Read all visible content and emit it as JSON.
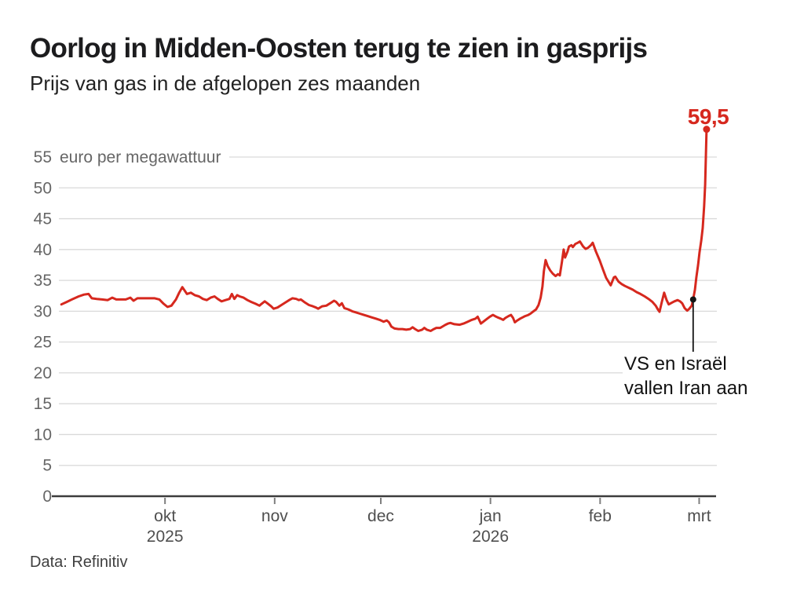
{
  "header": {
    "title": "Oorlog in Midden-Oosten terug te zien in gasprijs",
    "subtitle": "Prijs van gas in de afgelopen zes maanden"
  },
  "footer": {
    "source": "Data: Refinitiv"
  },
  "annotations": {
    "end_label": "59,5",
    "event_line1": "VS en Israël",
    "event_line2": "vallen Iran aan"
  },
  "colors": {
    "line_red": "#d6281e",
    "gridline": "#d9d9d9",
    "axis_line": "#3c3c3c",
    "tick": "#7f7f7f",
    "y_label": "#666666",
    "x_label": "#4f4f4f",
    "annotation_black": "#141414"
  },
  "chart_data": {
    "type": "line",
    "title": "Oorlog in Midden-Oosten terug te zien in gasprijs",
    "subtitle": "Prijs van gas in de afgelopen zes maanden",
    "unit_label": "euro per megawattuur",
    "ylabel": "euro per megawattuur",
    "ylim": [
      0,
      55
    ],
    "y_ticks": [
      0,
      5,
      10,
      15,
      20,
      25,
      30,
      35,
      40,
      45,
      50,
      55
    ],
    "x_epoch": "days since 1 september 2025",
    "x_domain": [
      0,
      186
    ],
    "grid": "horizontal-only",
    "x_ticks": [
      {
        "label": "okt",
        "year": "2025",
        "day": 30
      },
      {
        "label": "nov",
        "day": 61
      },
      {
        "label": "dec",
        "day": 91
      },
      {
        "label": "jan",
        "year": "2026",
        "day": 122
      },
      {
        "label": "feb",
        "day": 153
      },
      {
        "label": "mrt",
        "day": 181
      }
    ],
    "series": [
      {
        "name": "gasprijs",
        "color": "#d6281e",
        "points": [
          [
            0.7,
            31.1
          ],
          [
            2.2,
            31.5
          ],
          [
            4,
            32
          ],
          [
            5.6,
            32.4
          ],
          [
            7.1,
            32.7
          ],
          [
            8.4,
            32.8
          ],
          [
            9.3,
            32.1
          ],
          [
            10.7,
            32
          ],
          [
            12.2,
            31.9
          ],
          [
            13.8,
            31.8
          ],
          [
            15.1,
            32.2
          ],
          [
            16.2,
            31.9
          ],
          [
            17.8,
            31.9
          ],
          [
            18.9,
            31.9
          ],
          [
            20.2,
            32.2
          ],
          [
            21.1,
            31.7
          ],
          [
            22.2,
            32.1
          ],
          [
            23.8,
            32.1
          ],
          [
            25.6,
            32.1
          ],
          [
            27.1,
            32.1
          ],
          [
            28.4,
            31.9
          ],
          [
            29.6,
            31.2
          ],
          [
            30.7,
            30.7
          ],
          [
            31.8,
            30.9
          ],
          [
            33.1,
            31.9
          ],
          [
            34,
            33
          ],
          [
            34.9,
            33.9
          ],
          [
            36.2,
            32.8
          ],
          [
            37.3,
            33
          ],
          [
            38.4,
            32.6
          ],
          [
            39.6,
            32.4
          ],
          [
            40.7,
            32
          ],
          [
            41.8,
            31.8
          ],
          [
            42.9,
            32.2
          ],
          [
            44,
            32.4
          ],
          [
            44.9,
            32
          ],
          [
            46,
            31.6
          ],
          [
            47.1,
            31.8
          ],
          [
            48.2,
            32
          ],
          [
            48.9,
            32.8
          ],
          [
            49.6,
            32
          ],
          [
            50.4,
            32.6
          ],
          [
            51.1,
            32.4
          ],
          [
            52.2,
            32.2
          ],
          [
            53.3,
            31.8
          ],
          [
            54.4,
            31.5
          ],
          [
            55.6,
            31.2
          ],
          [
            56.7,
            30.9
          ],
          [
            57.3,
            31.2
          ],
          [
            58.2,
            31.6
          ],
          [
            58.9,
            31.3
          ],
          [
            60,
            30.8
          ],
          [
            60.7,
            30.4
          ],
          [
            61.8,
            30.6
          ],
          [
            62.9,
            31
          ],
          [
            64,
            31.4
          ],
          [
            65.1,
            31.8
          ],
          [
            66,
            32.1
          ],
          [
            67.1,
            32
          ],
          [
            67.8,
            31.8
          ],
          [
            68.4,
            31.9
          ],
          [
            69.6,
            31.4
          ],
          [
            70.7,
            31
          ],
          [
            71.8,
            30.8
          ],
          [
            72.7,
            30.6
          ],
          [
            73.3,
            30.4
          ],
          [
            74.4,
            30.8
          ],
          [
            75.6,
            30.9
          ],
          [
            76.7,
            31.3
          ],
          [
            77.8,
            31.7
          ],
          [
            78.4,
            31.5
          ],
          [
            79.3,
            30.9
          ],
          [
            80,
            31.3
          ],
          [
            80.7,
            30.5
          ],
          [
            81.8,
            30.3
          ],
          [
            82.9,
            30
          ],
          [
            84,
            29.8
          ],
          [
            85.1,
            29.6
          ],
          [
            86.2,
            29.4
          ],
          [
            87.3,
            29.2
          ],
          [
            88.4,
            29
          ],
          [
            89.6,
            28.8
          ],
          [
            90.7,
            28.6
          ],
          [
            91.8,
            28.3
          ],
          [
            92.7,
            28.5
          ],
          [
            93.3,
            28.2
          ],
          [
            94,
            27.5
          ],
          [
            94.9,
            27.2
          ],
          [
            96,
            27.1
          ],
          [
            97.1,
            27.1
          ],
          [
            98.2,
            27
          ],
          [
            99.3,
            27.1
          ],
          [
            100,
            27.4
          ],
          [
            100.7,
            27.1
          ],
          [
            101.6,
            26.8
          ],
          [
            102.7,
            27
          ],
          [
            103.3,
            27.3
          ],
          [
            104,
            27
          ],
          [
            105.1,
            26.8
          ],
          [
            106,
            27.1
          ],
          [
            106.7,
            27.3
          ],
          [
            107.8,
            27.3
          ],
          [
            108.4,
            27.5
          ],
          [
            109.3,
            27.8
          ],
          [
            110,
            28
          ],
          [
            110.7,
            28.1
          ],
          [
            111.8,
            27.9
          ],
          [
            113.3,
            27.8
          ],
          [
            114.4,
            28
          ],
          [
            115.6,
            28.3
          ],
          [
            116.7,
            28.6
          ],
          [
            117.8,
            28.8
          ],
          [
            118.4,
            29.1
          ],
          [
            119.3,
            28
          ],
          [
            120,
            28.3
          ],
          [
            121.1,
            28.8
          ],
          [
            121.8,
            29.1
          ],
          [
            122.7,
            29.4
          ],
          [
            123.3,
            29.2
          ],
          [
            124,
            29
          ],
          [
            124.9,
            28.8
          ],
          [
            125.6,
            28.6
          ],
          [
            126.2,
            28.9
          ],
          [
            127.1,
            29.2
          ],
          [
            127.8,
            29.4
          ],
          [
            128.4,
            28.9
          ],
          [
            128.9,
            28.2
          ],
          [
            129.6,
            28.5
          ],
          [
            130.4,
            28.8
          ],
          [
            131.1,
            29
          ],
          [
            131.8,
            29.2
          ],
          [
            132.7,
            29.4
          ],
          [
            133.3,
            29.6
          ],
          [
            134,
            29.9
          ],
          [
            134.9,
            30.3
          ],
          [
            135.6,
            31
          ],
          [
            136.2,
            32.2
          ],
          [
            136.7,
            34
          ],
          [
            137.1,
            36.5
          ],
          [
            137.6,
            38.3
          ],
          [
            138.2,
            37.3
          ],
          [
            138.9,
            36.6
          ],
          [
            139.6,
            36.1
          ],
          [
            140.4,
            35.7
          ],
          [
            141.1,
            36
          ],
          [
            141.6,
            35.8
          ],
          [
            142.2,
            38
          ],
          [
            142.7,
            40
          ],
          [
            143.1,
            38.7
          ],
          [
            143.8,
            39.7
          ],
          [
            144.2,
            40.5
          ],
          [
            144.9,
            40.7
          ],
          [
            145.3,
            40.4
          ],
          [
            146,
            40.9
          ],
          [
            146.7,
            41.1
          ],
          [
            147.3,
            41.3
          ],
          [
            148.2,
            40.5
          ],
          [
            148.9,
            40.1
          ],
          [
            149.6,
            40.3
          ],
          [
            150.4,
            40.7
          ],
          [
            150.9,
            41.1
          ],
          [
            151.8,
            39.7
          ],
          [
            152.9,
            38.2
          ],
          [
            153.8,
            36.8
          ],
          [
            154.7,
            35.4
          ],
          [
            156,
            34.2
          ],
          [
            156.9,
            35.5
          ],
          [
            157.3,
            35.6
          ],
          [
            158.2,
            34.8
          ],
          [
            159.1,
            34.4
          ],
          [
            160,
            34.1
          ],
          [
            161.1,
            33.8
          ],
          [
            162.2,
            33.5
          ],
          [
            163.3,
            33.1
          ],
          [
            164.4,
            32.8
          ],
          [
            165.6,
            32.4
          ],
          [
            166.7,
            32
          ],
          [
            167.8,
            31.5
          ],
          [
            168.7,
            30.9
          ],
          [
            169.3,
            30.3
          ],
          [
            169.8,
            29.9
          ],
          [
            170.4,
            31.4
          ],
          [
            171.1,
            33
          ],
          [
            171.8,
            31.8
          ],
          [
            172.4,
            31.1
          ],
          [
            173.3,
            31.4
          ],
          [
            174,
            31.6
          ],
          [
            174.9,
            31.8
          ],
          [
            175.6,
            31.6
          ],
          [
            176.2,
            31.3
          ],
          [
            176.9,
            30.5
          ],
          [
            177.6,
            30.1
          ],
          [
            178.2,
            30.4
          ],
          [
            178.9,
            30.9
          ],
          [
            179.3,
            31.9
          ],
          [
            179.8,
            33.5
          ],
          [
            180.2,
            35.5
          ],
          [
            180.7,
            37.5
          ],
          [
            181.1,
            39.5
          ],
          [
            181.6,
            41.5
          ],
          [
            182,
            43.5
          ],
          [
            182.4,
            47
          ],
          [
            182.7,
            50.5
          ],
          [
            182.9,
            55
          ],
          [
            183.1,
            59.5
          ]
        ]
      }
    ],
    "event_marker": {
      "day": 179.3,
      "value": 31.9,
      "label": "VS en Israël vallen Iran aan"
    },
    "end_marker": {
      "day": 183.1,
      "value": 59.5,
      "label": "59,5"
    }
  }
}
